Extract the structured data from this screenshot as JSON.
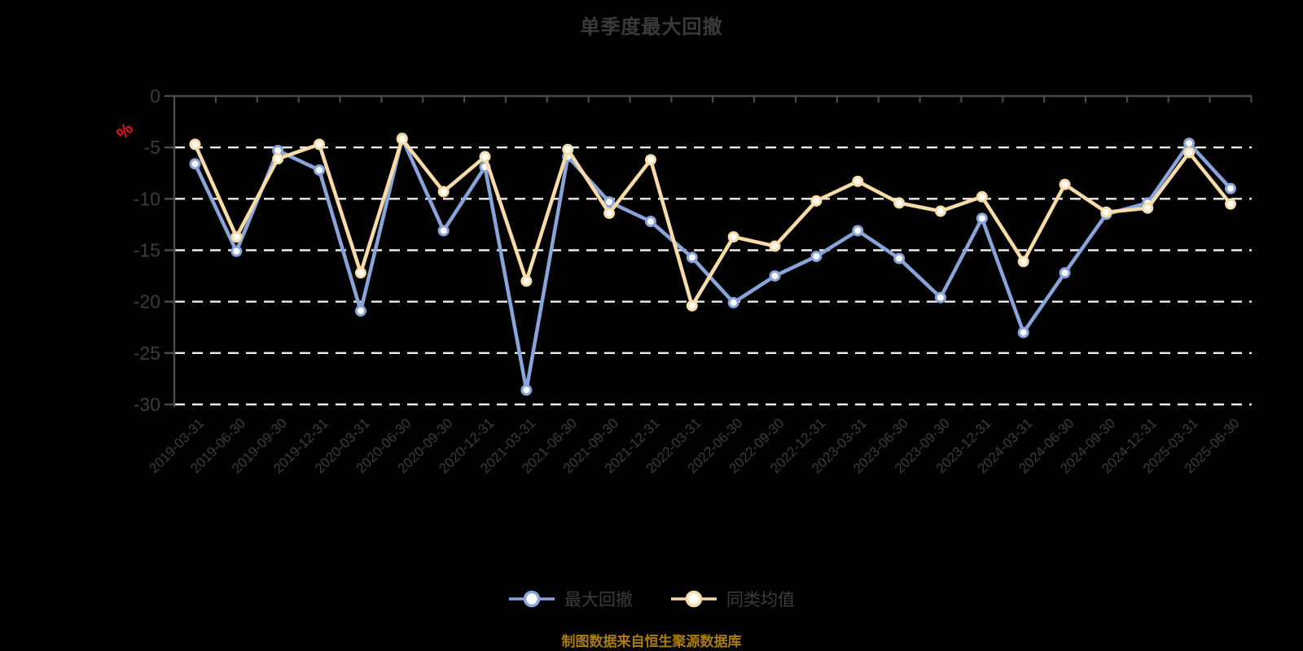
{
  "title": "单季度最大回撤",
  "y_axis": {
    "unit_label": "%",
    "unit_color": "#E8131D",
    "tick_labels": [
      "0",
      "-5",
      "-10",
      "-15",
      "-20",
      "-25",
      "-30"
    ]
  },
  "legend": {
    "items": [
      {
        "label": "最大回撤",
        "color": "#88A4D8"
      },
      {
        "label": "同类均值",
        "color": "#F8DCA8"
      }
    ]
  },
  "footer": {
    "source_note": "制图数据来自恒生聚源数据库",
    "color": "#AB7E0F"
  },
  "chart_data": {
    "type": "line",
    "title": "单季度最大回撤",
    "xlabel": "",
    "ylabel": "%",
    "ylim": [
      -30,
      0
    ],
    "y_ticks": [
      0,
      -5,
      -10,
      -15,
      -20,
      -25,
      -30
    ],
    "grid": "horizontal-dashed",
    "grid_color": "#EDEDED",
    "axis_color": "#4A4A4A",
    "tick_label_color": "#3C3C3C",
    "background": "#000000",
    "legend_position": "bottom",
    "marker": "circle-white-fill",
    "categories": [
      "2019-03-31",
      "2019-06-30",
      "2019-09-30",
      "2019-12-31",
      "2020-03-31",
      "2020-06-30",
      "2020-09-30",
      "2020-12-31",
      "2021-03-31",
      "2021-06-30",
      "2021-09-30",
      "2021-12-31",
      "2022-03-31",
      "2022-06-30",
      "2022-09-30",
      "2022-12-31",
      "2023-03-31",
      "2023-06-30",
      "2023-09-30",
      "2023-12-31",
      "2024-03-31",
      "2024-06-30",
      "2024-09-30",
      "2024-12-31",
      "2025-03-31",
      "2025-06-30"
    ],
    "series": [
      {
        "name": "最大回撤",
        "color": "#88A4D8",
        "values": [
          -6.6,
          -15.1,
          -5.3,
          -7.2,
          -20.9,
          -4.1,
          -13.1,
          -6.9,
          -28.6,
          -5.9,
          -10.3,
          -12.2,
          -15.7,
          -20.1,
          -17.5,
          -15.6,
          -13.1,
          -15.8,
          -19.6,
          -11.9,
          -23.0,
          -17.2,
          -11.5,
          -10.4,
          -4.6,
          -9.0
        ]
      },
      {
        "name": "同类均值",
        "color": "#F8DCA8",
        "values": [
          -4.7,
          -13.7,
          -6.1,
          -4.7,
          -17.2,
          -4.2,
          -9.3,
          -5.9,
          -18.0,
          -5.2,
          -11.4,
          -6.2,
          -20.4,
          -13.7,
          -14.6,
          -10.2,
          -8.3,
          -10.4,
          -11.2,
          -9.8,
          -16.1,
          -8.6,
          -11.3,
          -10.9,
          -5.5,
          -10.5
        ]
      }
    ]
  }
}
